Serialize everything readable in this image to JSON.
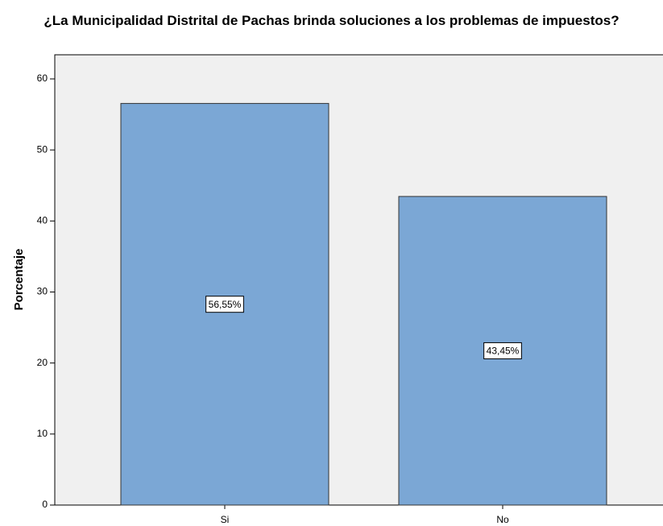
{
  "chart_data": {
    "type": "bar",
    "title": "¿La Municipalidad Distrital de Pachas brinda soluciones a los problemas de impuestos?",
    "y_label": "Porcentaje",
    "categories": [
      "Si",
      "No"
    ],
    "values": [
      56.55,
      43.45
    ],
    "value_labels": [
      "56,55%",
      "43,45%"
    ],
    "color": "#7ba7d5",
    "ylim": [
      0,
      63.4
    ],
    "yticks": [
      0,
      10,
      20,
      30,
      40,
      50,
      60
    ],
    "grid": false
  }
}
